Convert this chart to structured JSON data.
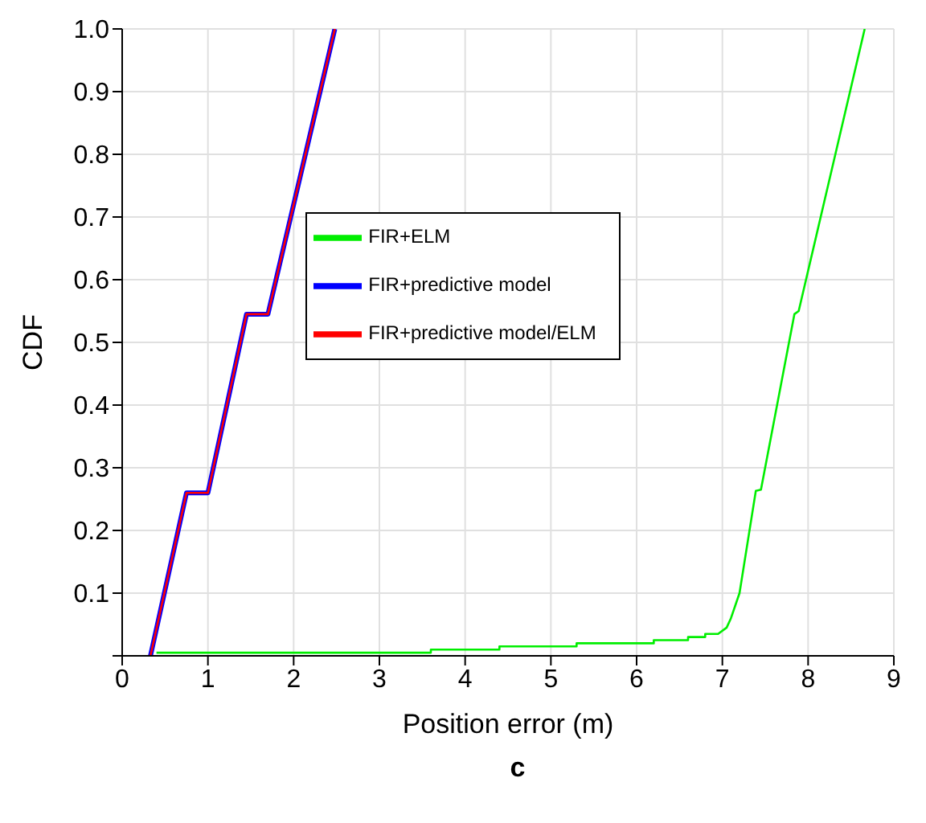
{
  "chart_data": {
    "type": "line",
    "xlabel": "Position error (m)",
    "ylabel": "CDF",
    "annotations": [
      "c"
    ],
    "xlim": [
      0,
      9
    ],
    "xticks": [
      0,
      1,
      2,
      3,
      4,
      5,
      6,
      7,
      8,
      9
    ],
    "ylim": [
      0,
      1
    ],
    "yticks": [
      {
        "value": 0,
        "label": null
      },
      0.1,
      0.2,
      0.3,
      0.4,
      0.5,
      0.6,
      0.7,
      0.8,
      0.9,
      {
        "value": 1,
        "label": "1.0"
      }
    ],
    "grid": true,
    "legend": "center",
    "marker": "none",
    "line_style": "solid",
    "series": [
      {
        "name": "FIR+ELM",
        "color": "#00ee00",
        "x": [
          0.4,
          3.6,
          3.6,
          4.4,
          4.4,
          5.3,
          5.3,
          6.2,
          6.2,
          6.6,
          6.6,
          6.8,
          6.8,
          6.95,
          7.05,
          7.1,
          7.2,
          7.39,
          7.45,
          7.84,
          7.89,
          8.66
        ],
        "values": [
          0.005,
          0.005,
          0.01,
          0.01,
          0.015,
          0.015,
          0.02,
          0.02,
          0.025,
          0.025,
          0.03,
          0.03,
          0.035,
          0.035,
          0.045,
          0.06,
          0.1,
          0.263,
          0.265,
          0.545,
          0.55,
          1.0
        ]
      },
      {
        "name": "FIR+predictive model",
        "color": "#0000ff",
        "x": [
          0.33,
          0.75,
          1.0,
          1.45,
          1.7,
          2.48
        ],
        "values": [
          0,
          0.26,
          0.26,
          0.545,
          0.545,
          1.0
        ]
      },
      {
        "name": "FIR+predictive model/ELM",
        "color": "#ff0000",
        "x": [
          0.33,
          0.75,
          1.0,
          1.45,
          1.7,
          2.48
        ],
        "values": [
          0,
          0.26,
          0.26,
          0.545,
          0.545,
          1.0
        ]
      }
    ]
  }
}
